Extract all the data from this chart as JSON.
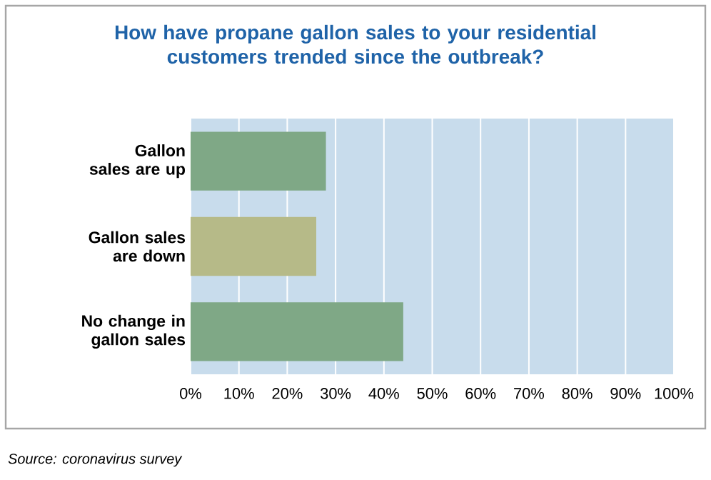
{
  "chart_data": {
    "type": "bar",
    "orientation": "horizontal",
    "title": "How have propane gallon sales to your residential customers trended since the outbreak?",
    "categories": [
      "Gallon sales are up",
      "Gallon sales are down",
      "No change in gallon sales"
    ],
    "values": [
      28,
      26,
      44
    ],
    "colors": [
      "#7fa886",
      "#b6ba88",
      "#7fa886"
    ],
    "xlim": [
      0,
      100
    ],
    "xticks": [
      {
        "value": 0,
        "label": "0%"
      },
      {
        "value": 10,
        "label": "10%"
      },
      {
        "value": 20,
        "label": "20%"
      },
      {
        "value": 30,
        "label": "30%"
      },
      {
        "value": 40,
        "label": "40%"
      },
      {
        "value": 50,
        "label": "50%"
      },
      {
        "value": 60,
        "label": "60%"
      },
      {
        "value": 70,
        "label": "70%"
      },
      {
        "value": 80,
        "label": "80%"
      },
      {
        "value": 90,
        "label": "90%"
      },
      {
        "value": 100,
        "label": "100%"
      }
    ],
    "grid": "x",
    "annotations": [
      "Source: coronavirus survey"
    ]
  }
}
